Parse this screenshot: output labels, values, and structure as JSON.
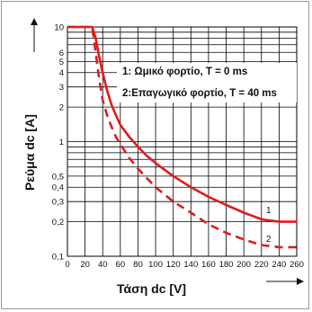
{
  "chart_data": {
    "type": "line",
    "title": "",
    "xlabel": "Τάση dc [V]",
    "ylabel": "Ρεύμα dc [A]",
    "xlim": [
      0,
      260
    ],
    "ylim": [
      0.1,
      10
    ],
    "yscale": "log",
    "grid": true,
    "x_ticks": [
      0,
      20,
      40,
      60,
      80,
      100,
      120,
      140,
      160,
      180,
      200,
      220,
      240,
      260
    ],
    "y_ticks": [
      0.1,
      0.2,
      0.3,
      0.4,
      0.5,
      1,
      2,
      3,
      4,
      5,
      6,
      10
    ],
    "y_tick_labels": [
      "0,1",
      "0,2",
      "0,3",
      "0,4",
      "0,5",
      "1",
      "2",
      "3",
      "4",
      "5",
      "6",
      "10"
    ],
    "legend": [
      "1: Ωμικό φορτίο, T = 0 ms",
      "2:Επαγωγικό φορτίο, T = 40 ms"
    ],
    "curve_labels": [
      "1",
      "2"
    ],
    "series": [
      {
        "style": "solid",
        "color": "#e01b1b",
        "x": [
          0,
          28,
          32,
          36,
          40,
          45,
          50,
          55,
          60,
          70,
          80,
          90,
          100,
          120,
          140,
          160,
          180,
          200,
          220,
          240,
          260
        ],
        "y": [
          10,
          10,
          8,
          5.5,
          4,
          2.8,
          2.1,
          1.7,
          1.4,
          1.1,
          0.9,
          0.75,
          0.65,
          0.5,
          0.4,
          0.33,
          0.28,
          0.24,
          0.21,
          0.2,
          0.2
        ]
      },
      {
        "style": "dashed",
        "color": "#e01b1b",
        "x": [
          0,
          28,
          32,
          36,
          40,
          45,
          50,
          55,
          60,
          70,
          80,
          90,
          100,
          120,
          140,
          160,
          180,
          200,
          220,
          240,
          260
        ],
        "y": [
          10,
          10,
          6,
          3.5,
          2.3,
          1.7,
          1.35,
          1.1,
          0.95,
          0.72,
          0.58,
          0.48,
          0.4,
          0.3,
          0.24,
          0.19,
          0.16,
          0.14,
          0.125,
          0.12,
          0.12
        ]
      }
    ],
    "colors": {
      "curve": "#e01b1b",
      "grid": "#000000"
    }
  }
}
